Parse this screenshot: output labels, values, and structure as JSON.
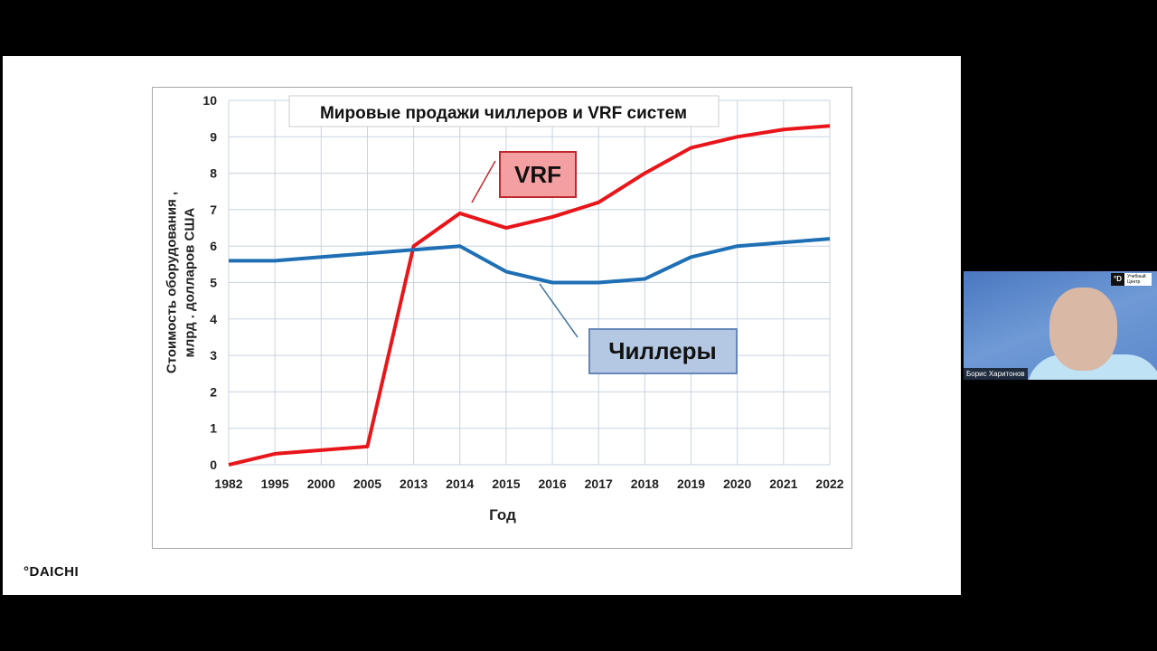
{
  "logo": "°DAICHI",
  "webcam": {
    "name": "Борис Харитонов",
    "badge_logo": "°D",
    "badge_text": "Учебный Центр"
  },
  "chart_data": {
    "type": "line",
    "title": "Мировые продажи чиллеров и VRF систем",
    "xlabel": "Год",
    "ylabel": [
      "Стоимость оборудования ,",
      "млрд . долларов США"
    ],
    "categories": [
      "1982",
      "1995",
      "2000",
      "2005",
      "2013",
      "2014",
      "2015",
      "2016",
      "2017",
      "2018",
      "2019",
      "2020",
      "2021",
      "2022"
    ],
    "ylim": [
      0,
      10
    ],
    "yticks": [
      "0",
      "1",
      "2",
      "3",
      "4",
      "5",
      "6",
      "7",
      "8",
      "9",
      "10"
    ],
    "grid": true,
    "series": [
      {
        "name": "VRF",
        "color": "#e8161b",
        "values": [
          0,
          0.3,
          0.4,
          0.5,
          6.0,
          6.9,
          6.5,
          6.8,
          7.2,
          8.0,
          8.7,
          9.0,
          9.2,
          9.3
        ]
      },
      {
        "name": "Чиллеры",
        "color": "#1f6fb5",
        "values": [
          5.6,
          5.6,
          5.7,
          5.8,
          5.9,
          6.0,
          5.3,
          5.0,
          5.0,
          5.1,
          5.7,
          6.0,
          6.1,
          6.2
        ]
      }
    ]
  }
}
